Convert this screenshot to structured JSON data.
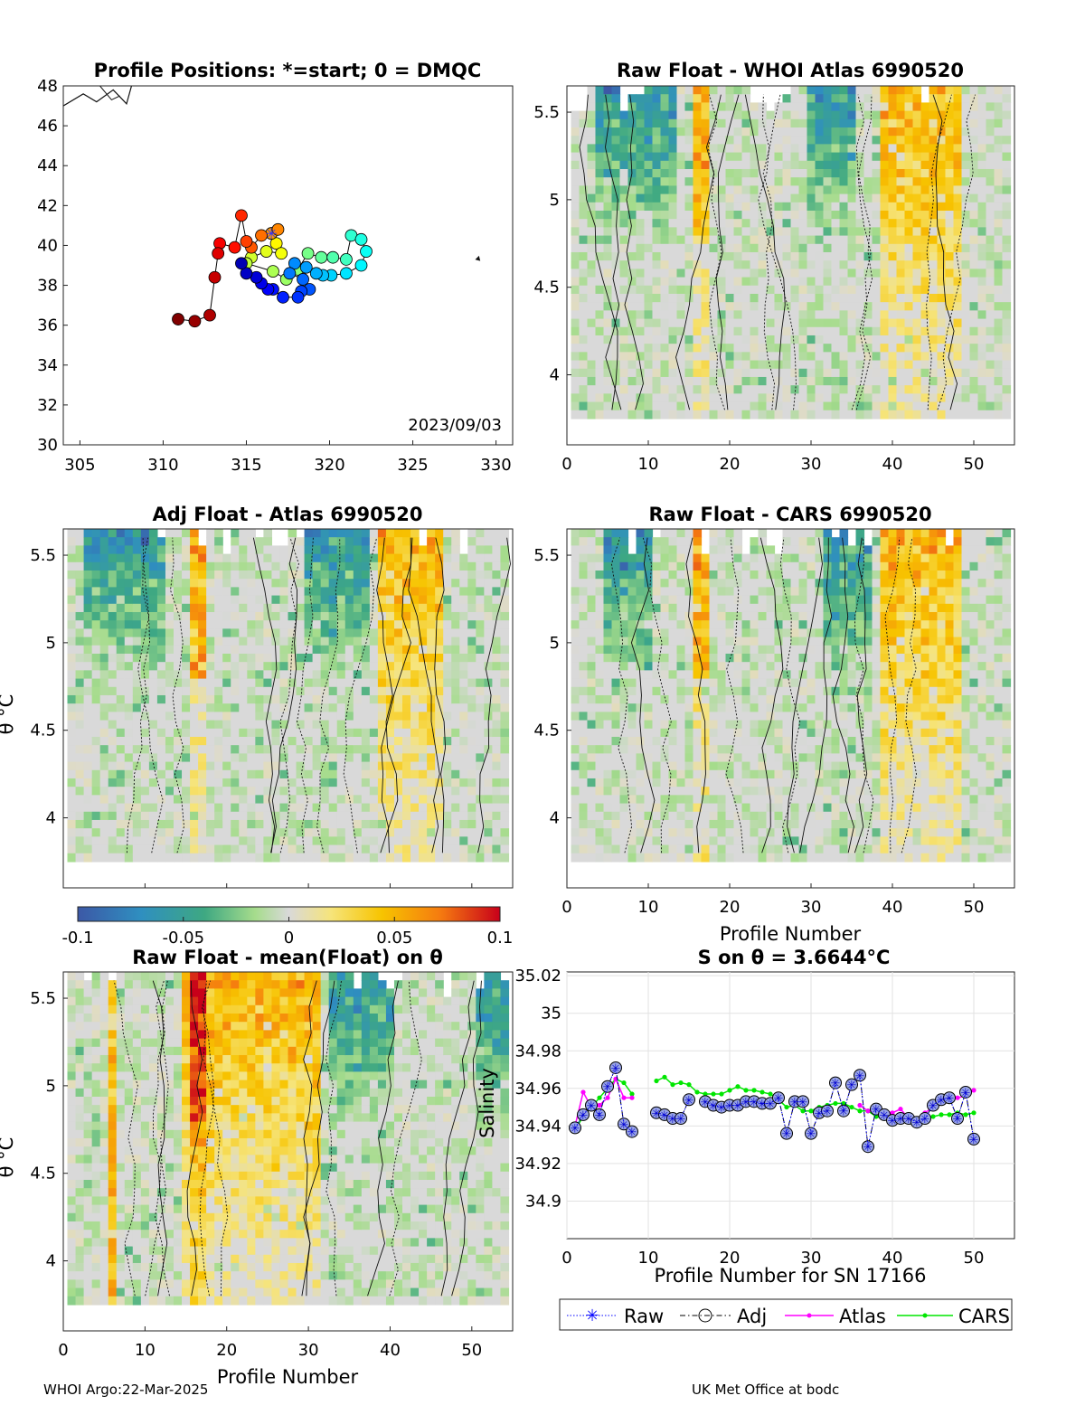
{
  "map": {
    "title": "Profile Positions: *=start; 0 = DMQC",
    "xticks": [
      305,
      310,
      315,
      320,
      325,
      330
    ],
    "yticks": [
      30,
      32,
      34,
      36,
      38,
      40,
      42,
      44,
      46,
      48
    ],
    "xlim": [
      304,
      331
    ],
    "ylim": [
      30,
      48
    ],
    "date_label": "2023/09/03",
    "track": [
      [
        316.5,
        40.6
      ],
      [
        316.9,
        40.8
      ],
      [
        315.9,
        40.5
      ],
      [
        315.3,
        39.9
      ],
      [
        315.0,
        40.2
      ],
      [
        314.7,
        41.5
      ],
      [
        314.3,
        39.9
      ],
      [
        313.4,
        40.1
      ],
      [
        313.3,
        39.6
      ],
      [
        313.1,
        38.4
      ],
      [
        312.8,
        36.5
      ],
      [
        311.9,
        36.2
      ],
      [
        310.9,
        36.3
      ]
    ],
    "track_b": [
      [
        316.5,
        40.6
      ],
      [
        316.8,
        40.1
      ],
      [
        317.1,
        39.6
      ],
      [
        316.2,
        39.7
      ],
      [
        315.3,
        39.4
      ],
      [
        315.0,
        39.1
      ],
      [
        316.6,
        38.7
      ],
      [
        317.4,
        38.3
      ],
      [
        318.1,
        38.8
      ],
      [
        318.7,
        39.6
      ],
      [
        319.5,
        39.4
      ],
      [
        320.2,
        39.4
      ],
      [
        321.0,
        39.3
      ],
      [
        321.3,
        40.5
      ],
      [
        321.9,
        40.3
      ],
      [
        322.2,
        39.7
      ],
      [
        321.9,
        39.0
      ],
      [
        321.0,
        38.6
      ],
      [
        320.1,
        38.5
      ],
      [
        319.6,
        38.5
      ],
      [
        319.2,
        38.6
      ],
      [
        318.6,
        38.9
      ],
      [
        317.9,
        39.1
      ],
      [
        317.6,
        38.6
      ],
      [
        318.4,
        38.3
      ],
      [
        318.8,
        37.8
      ],
      [
        318.3,
        37.7
      ],
      [
        318.1,
        37.4
      ],
      [
        317.2,
        37.4
      ],
      [
        316.6,
        37.8
      ],
      [
        316.3,
        37.8
      ],
      [
        315.9,
        38.1
      ],
      [
        315.6,
        38.4
      ],
      [
        315.0,
        38.6
      ],
      [
        314.7,
        39.1
      ]
    ]
  },
  "panels": [
    {
      "title": "Raw Float - WHOI Atlas  6990520",
      "seed": 3,
      "warm": [
        39,
        48
      ],
      "cold": [
        [
          4,
          13
        ],
        [
          30,
          35
        ]
      ]
    },
    {
      "title": "Adj Float - Atlas  6990520",
      "seed": 7,
      "warm": [
        39,
        46
      ],
      "cold": [
        [
          3,
          12
        ],
        [
          30,
          37
        ]
      ]
    },
    {
      "title": "Raw Float - CARS  6990520",
      "seed": 11,
      "warm": [
        39,
        48
      ],
      "cold": [
        [
          5,
          10
        ],
        [
          32,
          37
        ]
      ]
    },
    {
      "title": "Raw Float - mean(Float) on θ",
      "seed": 17,
      "warm": [
        15,
        31
      ],
      "cold": [
        [
          33,
          40
        ],
        [
          51,
          54
        ]
      ]
    }
  ],
  "contour_axes": {
    "xticks": [
      0,
      10,
      20,
      30,
      40,
      50
    ],
    "yticks": [
      4,
      4.5,
      5,
      5.5
    ],
    "xlim": [
      0,
      55
    ],
    "ylim": [
      3.6,
      5.65
    ],
    "xlabel": "Profile Number",
    "ylabel": "θ °C"
  },
  "colorbar": {
    "range": [
      -0.1,
      0.1
    ],
    "ticks": [
      "-0.1",
      "-0.05",
      "0",
      "0.05",
      "0.1"
    ]
  },
  "chart_data": {
    "type": "line",
    "title": "S on θ = 3.6644°C",
    "xlabel": "Profile Number for SN 17166",
    "ylabel": "Salinity",
    "xlim": [
      0,
      55
    ],
    "ylim": [
      34.88,
      35.022
    ],
    "xticks": [
      0,
      10,
      20,
      30,
      40,
      50
    ],
    "yticks": [
      "34.9",
      "34.92",
      "34.94",
      "34.96",
      "34.98",
      "35",
      "35.02"
    ],
    "grid": true,
    "legend": "bottom",
    "x": [
      1,
      2,
      3,
      4,
      5,
      6,
      7,
      8,
      9,
      10,
      11,
      12,
      13,
      14,
      15,
      16,
      17,
      18,
      19,
      20,
      21,
      22,
      23,
      24,
      25,
      26,
      27,
      28,
      29,
      30,
      31,
      32,
      33,
      34,
      35,
      36,
      37,
      38,
      39,
      40,
      41,
      42,
      43,
      44,
      45,
      46,
      47,
      48,
      49,
      50
    ],
    "series": [
      {
        "name": "Raw",
        "values": [
          34.939,
          34.946,
          34.951,
          34.946,
          34.961,
          34.971,
          34.941,
          34.937,
          null,
          null,
          34.947,
          34.946,
          34.944,
          34.944,
          34.954,
          null,
          34.953,
          34.951,
          34.95,
          34.951,
          34.951,
          34.953,
          34.953,
          34.952,
          34.952,
          34.955,
          34.936,
          34.953,
          34.953,
          34.936,
          34.947,
          34.948,
          34.963,
          34.948,
          34.962,
          34.967,
          34.929,
          34.949,
          34.946,
          34.943,
          34.944,
          34.944,
          34.942,
          34.944,
          34.951,
          34.954,
          34.955,
          34.944,
          34.958,
          34.933
        ]
      },
      {
        "name": "Adj",
        "values": [
          34.939,
          34.946,
          34.951,
          34.946,
          34.961,
          34.971,
          34.941,
          34.937,
          null,
          null,
          34.947,
          34.946,
          34.944,
          34.944,
          34.954,
          null,
          34.953,
          34.951,
          34.95,
          34.951,
          34.951,
          34.953,
          34.953,
          34.952,
          34.952,
          34.955,
          34.936,
          34.953,
          34.953,
          34.936,
          34.947,
          34.948,
          34.963,
          34.948,
          34.962,
          34.967,
          34.929,
          34.949,
          34.946,
          34.943,
          34.944,
          34.944,
          34.942,
          34.944,
          34.951,
          34.954,
          34.955,
          34.944,
          34.958,
          34.933
        ]
      },
      {
        "name": "Atlas",
        "values": [
          34.94,
          34.958,
          34.95,
          34.951,
          34.955,
          34.965,
          34.955,
          34.955,
          null,
          null,
          null,
          null,
          null,
          null,
          null,
          null,
          null,
          null,
          null,
          null,
          null,
          null,
          null,
          null,
          null,
          null,
          null,
          null,
          null,
          null,
          null,
          null,
          null,
          null,
          null,
          34.951,
          34.948,
          34.95,
          34.948,
          34.947,
          34.949,
          34.944,
          34.944,
          34.947,
          34.95,
          34.952,
          34.956,
          34.955,
          34.956,
          34.959
        ]
      },
      {
        "name": "CARS",
        "values": [
          34.938,
          34.945,
          34.95,
          34.955,
          34.96,
          34.965,
          34.963,
          34.957,
          null,
          null,
          34.964,
          34.966,
          34.962,
          34.963,
          34.962,
          34.958,
          34.957,
          34.957,
          34.957,
          34.959,
          34.961,
          34.959,
          34.959,
          34.958,
          34.957,
          34.954,
          34.95,
          34.951,
          34.948,
          34.948,
          34.95,
          34.951,
          34.952,
          34.952,
          34.95,
          34.948,
          34.948,
          34.945,
          34.944,
          34.943,
          34.943,
          34.943,
          34.943,
          34.944,
          34.945,
          34.946,
          34.946,
          34.947,
          34.946,
          34.947
        ]
      }
    ]
  },
  "legend": {
    "raw": "Raw",
    "adj": "Adj",
    "atlas": "Atlas",
    "cars": "CARS"
  },
  "footer": {
    "left": "WHOI Argo:22-Mar-2025",
    "right": "UK Met Office at bodc"
  },
  "colors": {
    "raw": "#0000ff",
    "adj": "#000000",
    "atlas": "#ff00ff",
    "cars": "#00e600"
  }
}
